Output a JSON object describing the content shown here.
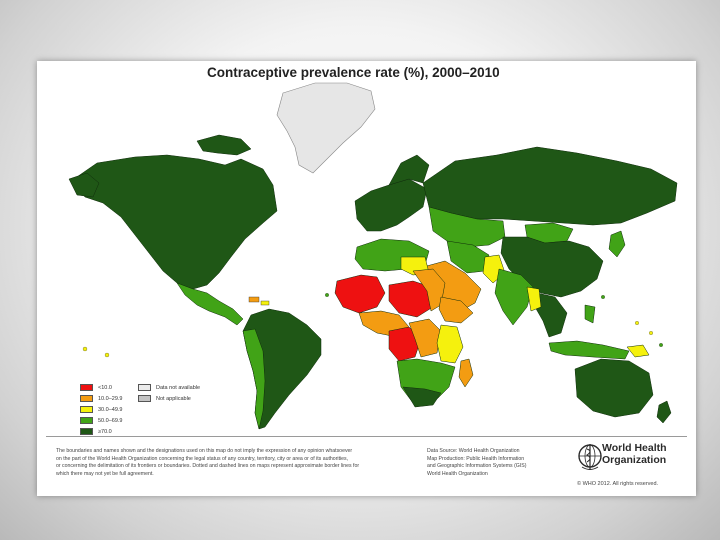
{
  "map": {
    "title": "Contraceptive prevalence rate (%), 2000–2010",
    "legend": {
      "categories": [
        {
          "label": "<10.0",
          "color": "#ee1111"
        },
        {
          "label": "10.0–29.9",
          "color": "#f39c12"
        },
        {
          "label": "30.0–49.9",
          "color": "#f5f10d"
        },
        {
          "label": "50.0–69.9",
          "color": "#41a317"
        },
        {
          "label": "≥70.0",
          "color": "#1f5716"
        }
      ],
      "other": [
        {
          "label": "Data not available",
          "color": "#ececec"
        },
        {
          "label": "Not applicable",
          "color": "#c4c4c4"
        }
      ]
    },
    "disclaimer_lines": [
      "The boundaries and names shown and the designations used on this map do not imply the expression of any opinion whatsoever",
      "on the part of the World Health Organization concerning the legal status of any country, territory, city or area or of its authorities,",
      "or concerning the delimitation of its frontiers or boundaries. Dotted and dashed lines on maps represent approximate border lines for",
      "which there may not yet be full agreement."
    ],
    "source_lines": [
      "Data Source: World Health Organization",
      "Map Production: Public Health Information",
      "and Geographic Information Systems (GIS)",
      "World Health Organization"
    ],
    "organization": {
      "line1": "World Health",
      "line2": "Organization",
      "logo": "who-emblem-icon"
    },
    "copyright": "© WHO 2012. All rights reserved."
  }
}
